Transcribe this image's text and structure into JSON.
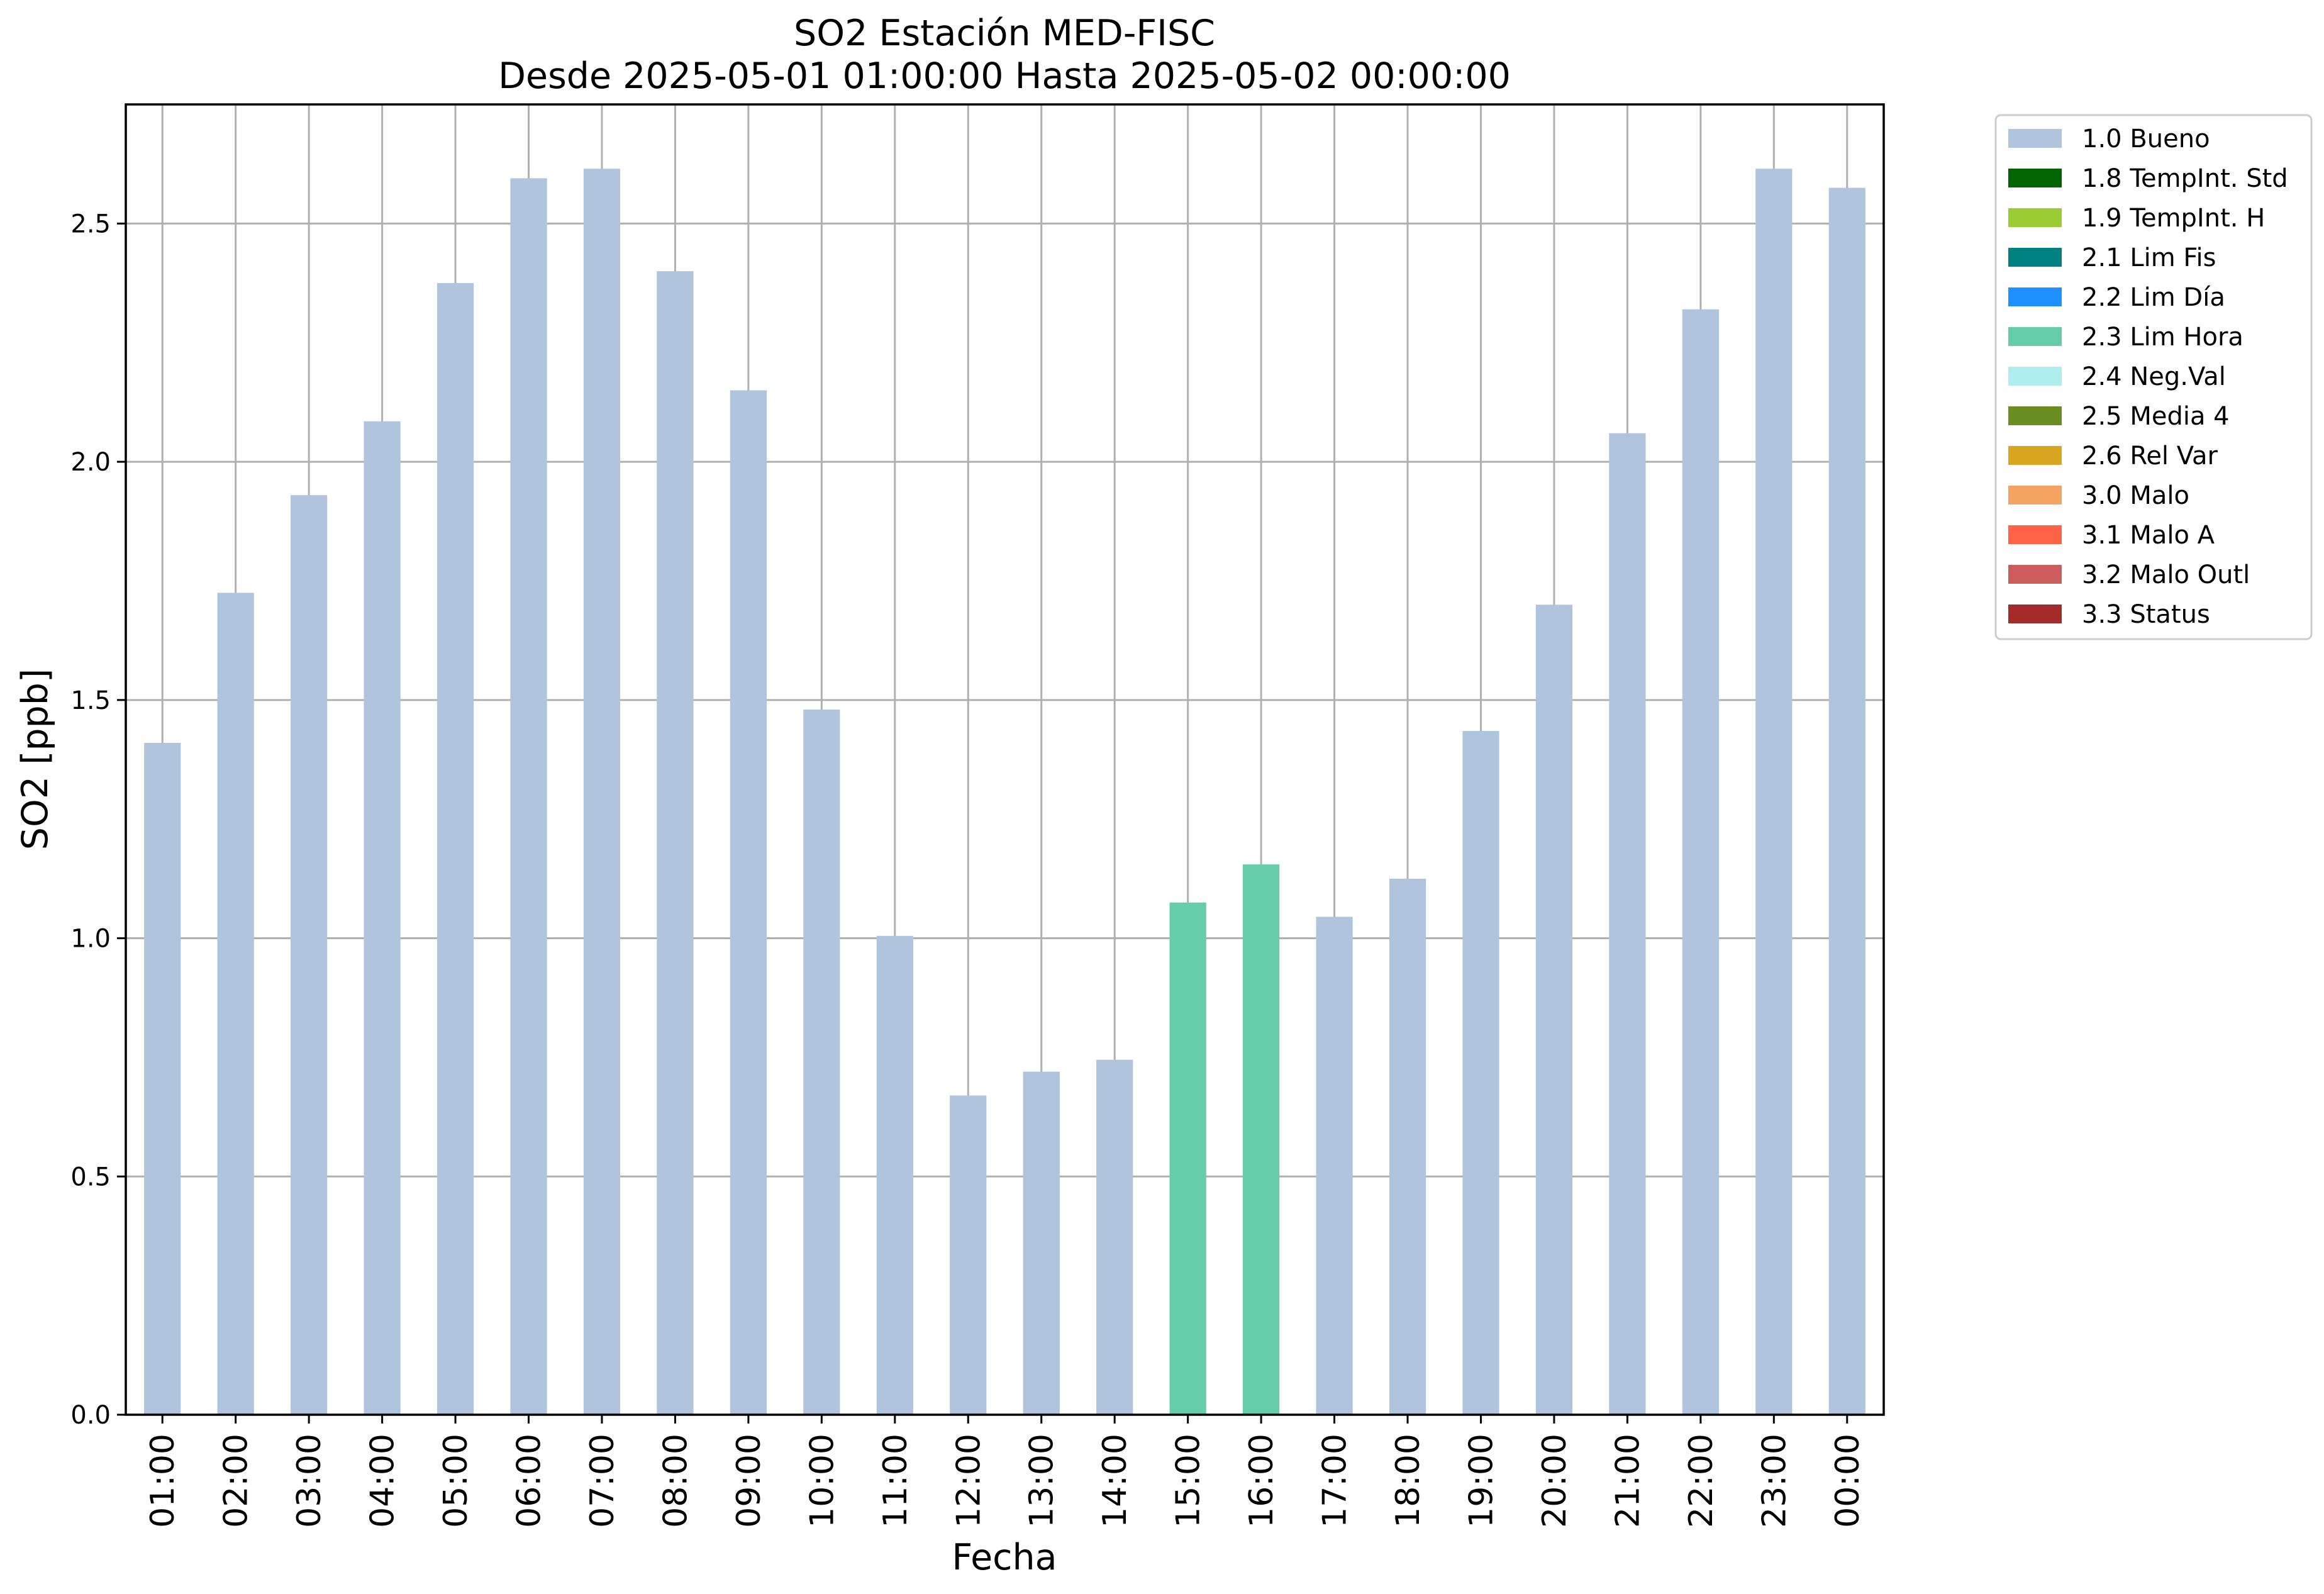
{
  "chart_data": {
    "type": "bar",
    "title": "SO2 Estación MED-FISC",
    "subtitle": "Desde 2025-05-01 01:00:00 Hasta 2025-05-02 00:00:00",
    "xlabel": "Fecha",
    "ylabel": "SO2 [ppb]",
    "ylim": [
      0,
      2.75
    ],
    "yticks": [
      "0.0",
      "0.5",
      "1.0",
      "1.5",
      "2.0",
      "2.5"
    ],
    "grid": true,
    "legend_placement": "outside-top-right",
    "categories": [
      "01:00",
      "02:00",
      "03:00",
      "04:00",
      "05:00",
      "06:00",
      "07:00",
      "08:00",
      "09:00",
      "10:00",
      "11:00",
      "12:00",
      "13:00",
      "14:00",
      "15:00",
      "16:00",
      "17:00",
      "18:00",
      "19:00",
      "20:00",
      "21:00",
      "22:00",
      "23:00",
      "00:00"
    ],
    "values": [
      1.41,
      1.725,
      1.93,
      2.085,
      2.375,
      2.595,
      2.615,
      2.4,
      2.15,
      1.48,
      1.005,
      0.67,
      0.72,
      0.745,
      1.075,
      1.155,
      1.045,
      1.125,
      1.435,
      1.7,
      2.06,
      2.32,
      2.615,
      2.575
    ],
    "flags": [
      "1.0 Bueno",
      "1.0 Bueno",
      "1.0 Bueno",
      "1.0 Bueno",
      "1.0 Bueno",
      "1.0 Bueno",
      "1.0 Bueno",
      "1.0 Bueno",
      "1.0 Bueno",
      "1.0 Bueno",
      "1.0 Bueno",
      "1.0 Bueno",
      "1.0 Bueno",
      "1.0 Bueno",
      "2.3 Lim Hora",
      "2.3 Lim Hora",
      "1.0 Bueno",
      "1.0 Bueno",
      "1.0 Bueno",
      "1.0 Bueno",
      "1.0 Bueno",
      "1.0 Bueno",
      "1.0 Bueno",
      "1.0 Bueno"
    ],
    "legend": [
      {
        "label": "1.0 Bueno",
        "color": "#b0c4de"
      },
      {
        "label": "1.8 TempInt. Std",
        "color": "#006400"
      },
      {
        "label": "1.9 TempInt. H",
        "color": "#9acd32"
      },
      {
        "label": "2.1 Lim Fis",
        "color": "#008080"
      },
      {
        "label": "2.2 Lim Día",
        "color": "#1e90ff"
      },
      {
        "label": "2.3 Lim Hora",
        "color": "#66cdaa"
      },
      {
        "label": "2.4 Neg.Val",
        "color": "#afeeee"
      },
      {
        "label": "2.5 Media 4",
        "color": "#6b8e23"
      },
      {
        "label": "2.6 Rel Var",
        "color": "#daa520"
      },
      {
        "label": "3.0 Malo",
        "color": "#f4a460"
      },
      {
        "label": "3.1 Malo A",
        "color": "#ff6347"
      },
      {
        "label": "3.2 Malo Outl",
        "color": "#cd5c5c"
      },
      {
        "label": "3.3 Status",
        "color": "#a52a2a"
      }
    ]
  }
}
